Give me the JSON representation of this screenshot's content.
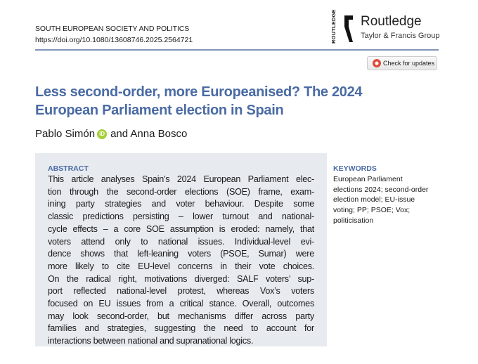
{
  "header": {
    "journal": "SOUTH EUROPEAN SOCIETY AND POLITICS",
    "doi": "https://doi.org/10.1080/13608746.2025.2564721"
  },
  "publisher": {
    "logo_vertical": "ROUTLEDGE",
    "name": "Routledge",
    "group": "Taylor & Francis Group"
  },
  "check_updates": "Check for updates",
  "title_lines": [
    "Less second-order, more Europeanised? The 2024",
    "European Parliament election in Spain"
  ],
  "authors": {
    "first": "Pablo Simón",
    "orcid": "iD",
    "rest": "and Anna Bosco"
  },
  "abstract": {
    "heading": "ABSTRACT",
    "lines": [
      "This article analyses Spain’s 2024 European Parliament elec-",
      "tion through the second-order elections (SOE) frame, exam-",
      "ining party strategies and voter behaviour. Despite some",
      "classic predictions persisting – lower turnout and national-",
      "cycle effects – a core SOE assumption is eroded: namely, that",
      "voters attend only to national issues. Individual-level evi-",
      "dence shows that left-leaning voters (PSOE, Sumar) were",
      "more likely to cite EU-level concerns in their vote choices.",
      "On the radical right, motivations diverged: SALF voters’ sup-",
      "port reflected national-level protest, whereas Vox’s voters",
      "focused on EU issues from a critical stance. Overall, outcomes",
      "may look second-order, but mechanisms differ across party",
      "families and strategies, suggesting the need to account for",
      "interactions between national and supranational logics."
    ]
  },
  "keywords": {
    "heading": "KEYWORDS",
    "lines": [
      "European Parliament",
      "elections 2024; second-order",
      "election model; EU-issue",
      "voting; PP; PSOE; Vox;",
      "politicisation"
    ]
  }
}
